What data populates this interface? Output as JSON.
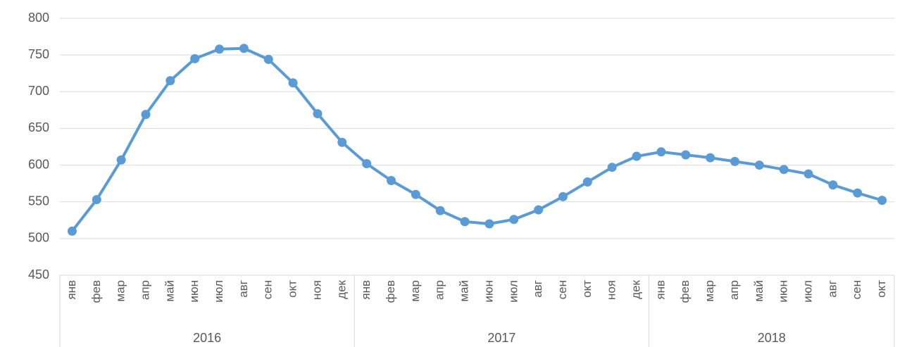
{
  "chart_data": {
    "type": "line",
    "groups": [
      {
        "name": "2016",
        "months": [
          "янв",
          "фев",
          "мар",
          "апр",
          "май",
          "июн",
          "июл",
          "авг",
          "сен",
          "окт",
          "ноя",
          "дек"
        ]
      },
      {
        "name": "2017",
        "months": [
          "янв",
          "фев",
          "мар",
          "апр",
          "май",
          "июн",
          "июл",
          "авг",
          "сен",
          "окт",
          "ноя",
          "дек"
        ]
      },
      {
        "name": "2018",
        "months": [
          "янв",
          "фев",
          "мар",
          "апр",
          "май",
          "июн",
          "июл",
          "авг",
          "сен",
          "окт"
        ]
      }
    ],
    "values": [
      510,
      553,
      607,
      669,
      715,
      745,
      758,
      759,
      744,
      712,
      670,
      631,
      602,
      579,
      560,
      538,
      523,
      520,
      526,
      539,
      557,
      577,
      597,
      612,
      618,
      614,
      610,
      605,
      600,
      594,
      588,
      573,
      562,
      552
    ],
    "color": "#5b9bd5",
    "ylim": [
      450,
      800
    ],
    "yticks": [
      450,
      500,
      550,
      600,
      650,
      700,
      750,
      800
    ],
    "grid": true
  }
}
